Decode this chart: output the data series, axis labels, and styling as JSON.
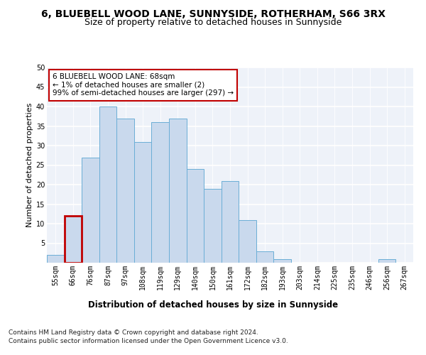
{
  "title1": "6, BLUEBELL WOOD LANE, SUNNYSIDE, ROTHERHAM, S66 3RX",
  "title2": "Size of property relative to detached houses in Sunnyside",
  "xlabel": "Distribution of detached houses by size in Sunnyside",
  "ylabel": "Number of detached properties",
  "bar_labels": [
    "55sqm",
    "66sqm",
    "76sqm",
    "87sqm",
    "97sqm",
    "108sqm",
    "119sqm",
    "129sqm",
    "140sqm",
    "150sqm",
    "161sqm",
    "172sqm",
    "182sqm",
    "193sqm",
    "203sqm",
    "214sqm",
    "225sqm",
    "235sqm",
    "246sqm",
    "256sqm",
    "267sqm"
  ],
  "bar_values": [
    2,
    12,
    27,
    40,
    37,
    31,
    36,
    37,
    24,
    19,
    21,
    11,
    3,
    1,
    0,
    0,
    0,
    0,
    0,
    1,
    0
  ],
  "bar_color": "#c9d9ed",
  "bar_edge_color": "#6baed6",
  "highlight_color": "#c00000",
  "highlight_index": 1,
  "annotation_text": "6 BLUEBELL WOOD LANE: 68sqm\n← 1% of detached houses are smaller (2)\n99% of semi-detached houses are larger (297) →",
  "ylim": [
    0,
    50
  ],
  "yticks": [
    0,
    5,
    10,
    15,
    20,
    25,
    30,
    35,
    40,
    45,
    50
  ],
  "footnote1": "Contains HM Land Registry data © Crown copyright and database right 2024.",
  "footnote2": "Contains public sector information licensed under the Open Government Licence v3.0.",
  "bg_color": "#eef2f9",
  "grid_color": "#ffffff",
  "title1_fontsize": 10,
  "title2_fontsize": 9,
  "xlabel_fontsize": 8.5,
  "ylabel_fontsize": 8,
  "tick_fontsize": 7,
  "annotation_fontsize": 7.5,
  "footnote_fontsize": 6.5
}
